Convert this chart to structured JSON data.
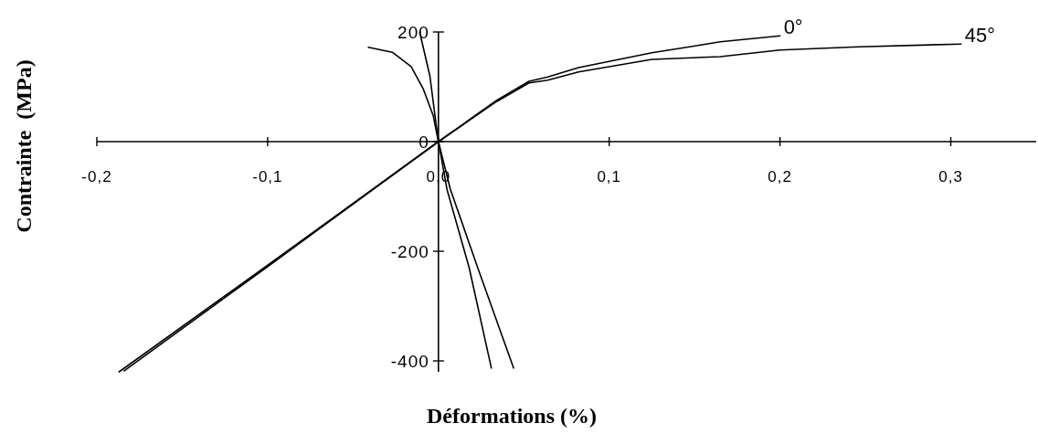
{
  "chart_data": {
    "type": "line",
    "xlabel": "Déformations (%)",
    "ylabel": "Contrainte  (MPa)",
    "xlim": [
      -0.2,
      0.35
    ],
    "ylim": [
      -420,
      200
    ],
    "xticks": [
      {
        "value": -0.2,
        "label": "-0,2"
      },
      {
        "value": -0.1,
        "label": "-0,1"
      },
      {
        "value": 0,
        "label": "0,0"
      },
      {
        "value": 0.1,
        "label": "0,1"
      },
      {
        "value": 0.2,
        "label": "0,2"
      },
      {
        "value": 0.3,
        "label": "0,3"
      }
    ],
    "yticks": [
      -400,
      -200,
      0,
      200
    ],
    "grid": false,
    "legend": false,
    "marker": "none",
    "line_style": "solid",
    "series": [
      {
        "name": "0°",
        "color": "#000000",
        "x": [
          -0.187,
          -0.102,
          0,
          0.034,
          0.053,
          0.064,
          0.082,
          0.125,
          0.165,
          0.2
        ],
        "values": [
          -420,
          -230,
          0,
          75,
          110,
          118,
          135,
          162,
          182,
          193
        ]
      },
      {
        "name": "45°",
        "color": "#000000",
        "x": [
          -0.184,
          -0.1,
          0,
          0.034,
          0.053,
          0.064,
          0.082,
          0.125,
          0.165,
          0.2,
          0.246,
          0.306
        ],
        "values": [
          -418,
          -228,
          0,
          73,
          107,
          112,
          127,
          150,
          155,
          167,
          173,
          178
        ]
      },
      {
        "color": "#000000",
        "x": [
          -0.041,
          -0.027,
          -0.016,
          -0.009,
          -0.003,
          0,
          0.007,
          0.023,
          0.044
        ],
        "values": [
          172,
          163,
          137,
          97,
          47,
          0,
          -87,
          -230,
          -413
        ]
      },
      {
        "color": "#000000",
        "x": [
          -0.011,
          -0.005,
          -0.002,
          0,
          0.005,
          0.018,
          0.031
        ],
        "values": [
          200,
          120,
          47,
          0,
          -87,
          -230,
          -413
        ]
      }
    ]
  }
}
